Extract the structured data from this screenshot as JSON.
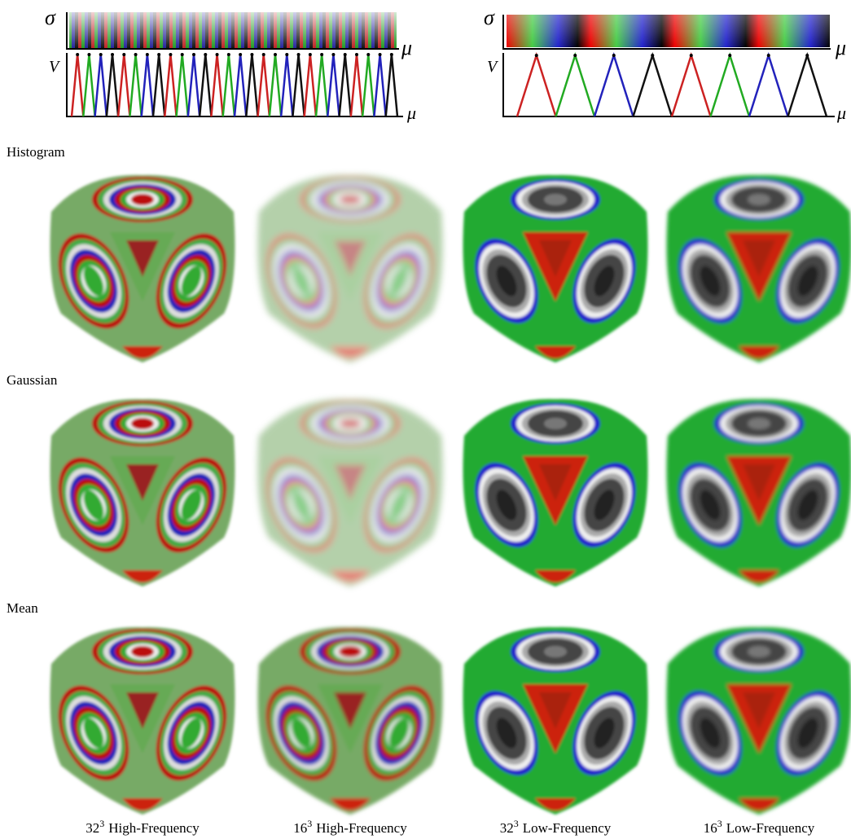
{
  "panels": [
    {
      "sigma_label": "σ",
      "mu_label_top": "μ",
      "v_label": "V",
      "mu_label_bottom": "μ"
    },
    {
      "sigma_label": "σ",
      "mu_label_top": "μ",
      "v_label": "V",
      "mu_label_bottom": "μ"
    }
  ],
  "rows": [
    {
      "label": "Histogram"
    },
    {
      "label": "Gaussian"
    },
    {
      "label": "Mean"
    }
  ],
  "columns": [
    {
      "size": "32",
      "exponent": "3",
      "label": "High-Frequency"
    },
    {
      "size": "16",
      "exponent": "3",
      "label": "High-Frequency"
    },
    {
      "size": "32",
      "exponent": "3",
      "label": "Low-Frequency"
    },
    {
      "size": "16",
      "exponent": "3",
      "label": "Low-Frequency"
    }
  ]
}
